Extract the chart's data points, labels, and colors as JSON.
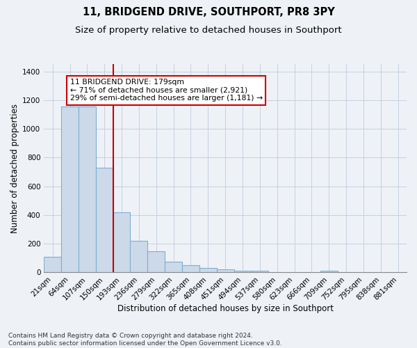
{
  "title": "11, BRIDGEND DRIVE, SOUTHPORT, PR8 3PY",
  "subtitle": "Size of property relative to detached houses in Southport",
  "xlabel": "Distribution of detached houses by size in Southport",
  "ylabel": "Number of detached properties",
  "categories": [
    "21sqm",
    "64sqm",
    "107sqm",
    "150sqm",
    "193sqm",
    "236sqm",
    "279sqm",
    "322sqm",
    "365sqm",
    "408sqm",
    "451sqm",
    "494sqm",
    "537sqm",
    "580sqm",
    "623sqm",
    "666sqm",
    "709sqm",
    "752sqm",
    "795sqm",
    "838sqm",
    "881sqm"
  ],
  "values": [
    105,
    1155,
    1155,
    730,
    420,
    220,
    148,
    72,
    50,
    32,
    20,
    12,
    12,
    0,
    0,
    0,
    8,
    0,
    0,
    0,
    0
  ],
  "bar_color": "#ccd9e8",
  "bar_edge_color": "#7bafd4",
  "vline_color": "#cc0000",
  "vline_x_index": 3.5,
  "annotation_text": "11 BRIDGEND DRIVE: 179sqm\n← 71% of detached houses are smaller (2,921)\n29% of semi-detached houses are larger (1,181) →",
  "annotation_box_edgecolor": "#cc0000",
  "annotation_box_facecolor": "white",
  "ylim": [
    0,
    1450
  ],
  "yticks": [
    0,
    200,
    400,
    600,
    800,
    1000,
    1200,
    1400
  ],
  "footer_line1": "Contains HM Land Registry data © Crown copyright and database right 2024.",
  "footer_line2": "Contains public sector information licensed under the Open Government Licence v3.0.",
  "background_color": "#eef2f7",
  "plot_bg_color": "#eef2f7",
  "grid_color": "#c5cfe0",
  "title_fontsize": 10.5,
  "subtitle_fontsize": 9.5,
  "xlabel_fontsize": 8.5,
  "ylabel_fontsize": 8.5,
  "tick_fontsize": 7.5,
  "annotation_fontsize": 7.8,
  "footer_fontsize": 6.5
}
